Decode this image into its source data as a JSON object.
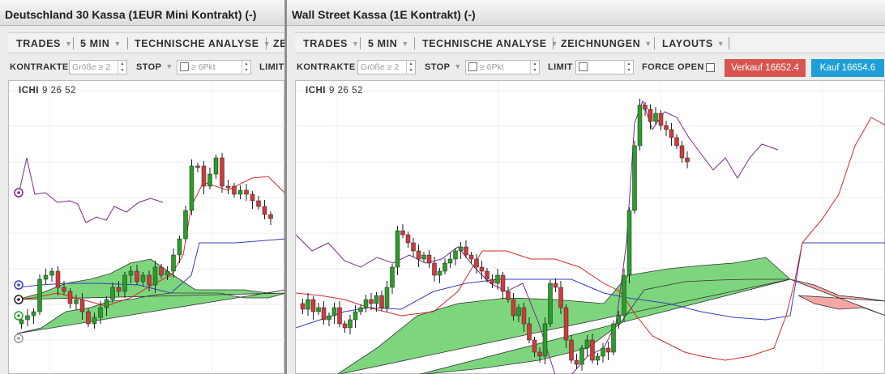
{
  "colors": {
    "up_candle": "#2a9d2a",
    "down_candle": "#d03a3a",
    "kumo_bull": "#7dd67d",
    "kumo_bear": "#f7a6a6",
    "tenkan": "#d42a2a",
    "kijun": "#3b3bbd",
    "chikou": "#7a2a8a",
    "sell_button": "#d9534f",
    "buy_button": "#1e9fd8"
  },
  "left_window": {
    "title": "Deutschland 30 Kassa (1EUR Mini Kontrakt) (-)",
    "menu": [
      "TRADES",
      "5 MIN",
      "TECHNISCHE ANALYSE",
      "ZE"
    ],
    "options": {
      "contracts_label": "KONTRAKTE",
      "contracts_placeholder": "Größe ≥ 2",
      "stop_label": "STOP",
      "stop_placeholder": "≥ 6Pkt",
      "limit_label": "LIMIT"
    },
    "indicator": {
      "name": "ICHI",
      "params": "9  26  52"
    },
    "drawing_tools": [
      "chikou-handle-icon",
      "kijun-handle-icon",
      "tenkan-handle-icon",
      "candle-handle-icon",
      "cloud-handle-icon"
    ]
  },
  "right_window": {
    "title": "Wall Street Kassa (1E Kontrakt) (-)",
    "menu": [
      "TRADES",
      "5 MIN",
      "TECHNISCHE ANALYSE",
      "ZEICHNUNGEN",
      "LAYOUTS"
    ],
    "options": {
      "contracts_label": "KONTRAKTE",
      "contracts_placeholder": "Größe ≥ 2",
      "stop_label": "STOP",
      "stop_placeholder": "≥ 6Pkt",
      "limit_label": "LIMIT",
      "force_open_label": "FORCE OPEN"
    },
    "sell_button": "Verkauf 16652.4",
    "buy_button": "Kauf 16654.6",
    "indicator": {
      "name": "ICHI",
      "params": "9  26  52"
    }
  }
}
